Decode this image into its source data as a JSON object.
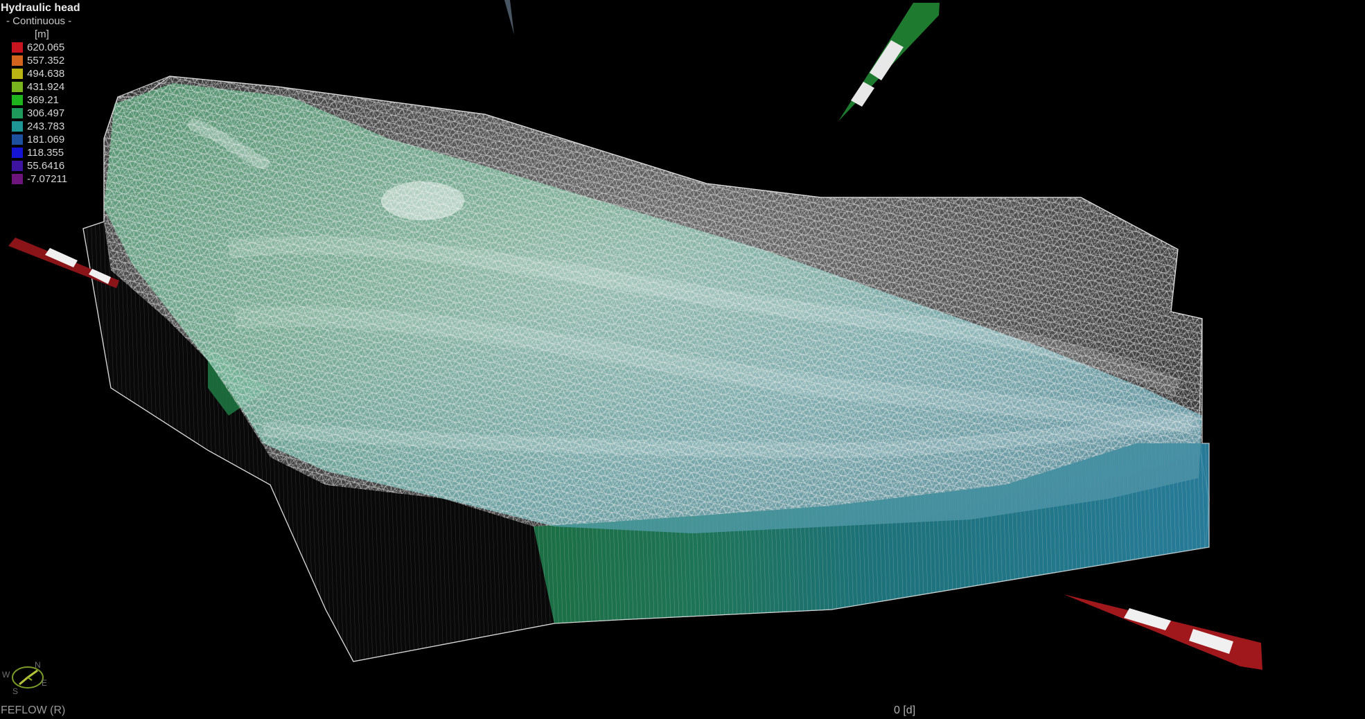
{
  "legend": {
    "title": "Hydraulic head",
    "subtitle": "- Continuous -",
    "unit": "[m]",
    "entries": [
      {
        "value": "620.065",
        "color": "#c8141e"
      },
      {
        "value": "557.352",
        "color": "#d2641e"
      },
      {
        "value": "494.638",
        "color": "#b9b414"
      },
      {
        "value": "431.924",
        "color": "#78b41e"
      },
      {
        "value": "369.21",
        "color": "#1eb41e"
      },
      {
        "value": "306.497",
        "color": "#1e9a5a"
      },
      {
        "value": "243.783",
        "color": "#1e9696"
      },
      {
        "value": "181.069",
        "color": "#1e50a0"
      },
      {
        "value": "118.355",
        "color": "#1414d2"
      },
      {
        "value": "55.6416",
        "color": "#3c14a0"
      },
      {
        "value": "-7.07211",
        "color": "#6e147d"
      }
    ]
  },
  "compass": {
    "north": "N",
    "south": "S",
    "east": "E",
    "west": "W"
  },
  "footer": {
    "app_label": "FEFLOW (R)",
    "time_label": "0 [d]"
  },
  "icons": {
    "compass": "compass-icon",
    "x_axis": "axis-arrow-x-icon",
    "y_axis": "axis-arrow-y-icon",
    "z_axis": "axis-arrow-z-icon"
  }
}
